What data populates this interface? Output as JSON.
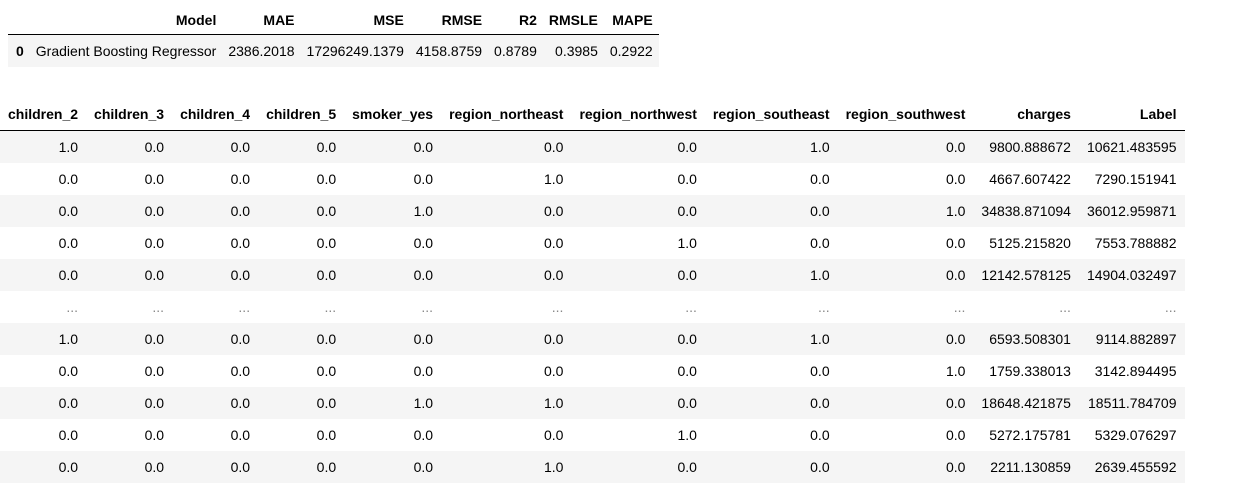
{
  "metrics": {
    "headers": [
      "",
      "Model",
      "MAE",
      "MSE",
      "RMSE",
      "R2",
      "RMSLE",
      "MAPE"
    ],
    "row": {
      "index": "0",
      "cells": [
        "Gradient Boosting Regressor",
        "2386.2018",
        "17296249.1379",
        "4158.8759",
        "0.8789",
        "0.3985",
        "0.2922"
      ]
    }
  },
  "data": {
    "headers": [
      "children_2",
      "children_3",
      "children_4",
      "children_5",
      "smoker_yes",
      "region_northeast",
      "region_northwest",
      "region_southeast",
      "region_southwest",
      "charges",
      "Label"
    ],
    "rows": [
      [
        "1.0",
        "0.0",
        "0.0",
        "0.0",
        "0.0",
        "0.0",
        "0.0",
        "1.0",
        "0.0",
        "9800.888672",
        "10621.483595"
      ],
      [
        "0.0",
        "0.0",
        "0.0",
        "0.0",
        "0.0",
        "1.0",
        "0.0",
        "0.0",
        "0.0",
        "4667.607422",
        "7290.151941"
      ],
      [
        "0.0",
        "0.0",
        "0.0",
        "0.0",
        "1.0",
        "0.0",
        "0.0",
        "0.0",
        "1.0",
        "34838.871094",
        "36012.959871"
      ],
      [
        "0.0",
        "0.0",
        "0.0",
        "0.0",
        "0.0",
        "0.0",
        "1.0",
        "0.0",
        "0.0",
        "5125.215820",
        "7553.788882"
      ],
      [
        "0.0",
        "0.0",
        "0.0",
        "0.0",
        "0.0",
        "0.0",
        "0.0",
        "1.0",
        "0.0",
        "12142.578125",
        "14904.032497"
      ],
      [
        "...",
        "...",
        "...",
        "...",
        "...",
        "...",
        "...",
        "...",
        "...",
        "...",
        "..."
      ],
      [
        "1.0",
        "0.0",
        "0.0",
        "0.0",
        "0.0",
        "0.0",
        "0.0",
        "1.0",
        "0.0",
        "6593.508301",
        "9114.882897"
      ],
      [
        "0.0",
        "0.0",
        "0.0",
        "0.0",
        "0.0",
        "0.0",
        "0.0",
        "0.0",
        "1.0",
        "1759.338013",
        "3142.894495"
      ],
      [
        "0.0",
        "0.0",
        "0.0",
        "0.0",
        "1.0",
        "1.0",
        "0.0",
        "0.0",
        "0.0",
        "18648.421875",
        "18511.784709"
      ],
      [
        "0.0",
        "0.0",
        "0.0",
        "0.0",
        "0.0",
        "0.0",
        "1.0",
        "0.0",
        "0.0",
        "5272.175781",
        "5329.076297"
      ],
      [
        "0.0",
        "0.0",
        "0.0",
        "0.0",
        "0.0",
        "1.0",
        "0.0",
        "0.0",
        "0.0",
        "2211.130859",
        "2639.455592"
      ]
    ]
  }
}
